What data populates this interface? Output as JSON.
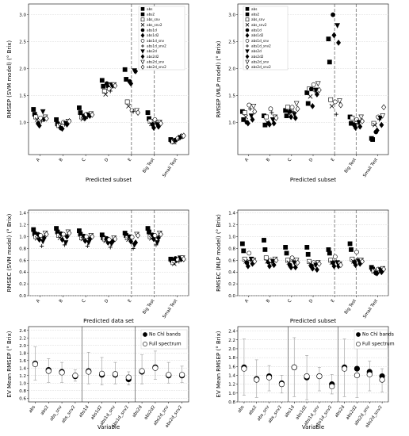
{
  "chart_data": [
    {
      "type": "scatter",
      "panel": "top-left",
      "ylabel": "RMSEP (SVM model) (° Brix)",
      "xlabel": "Predicted subset",
      "categories": [
        "A",
        "B",
        "C",
        "D",
        "E",
        "Big Test",
        "Small Test"
      ],
      "ylim": [
        0.4,
        3.2
      ],
      "yticks": [
        1.0,
        1.5,
        2.0,
        2.5,
        3.0
      ],
      "grid": true,
      "legend_position": "top-right",
      "series": [
        {
          "name": "abs",
          "marker": "square-filled",
          "values": [
            1.24,
            1.05,
            1.27,
            1.78,
            1.98,
            1.18,
            0.68
          ]
        },
        {
          "name": "abs2",
          "marker": "square-filled",
          "values": [
            1.15,
            0.97,
            1.18,
            1.67,
            1.8,
            1.07,
            0.66
          ]
        },
        {
          "name": "abs_snv",
          "marker": "square-open",
          "values": [
            1.1,
            0.94,
            1.1,
            1.58,
            1.38,
            1.02,
            0.64
          ]
        },
        {
          "name": "abs_snv2",
          "marker": "x",
          "values": [
            1.05,
            0.93,
            1.06,
            1.52,
            1.3,
            0.97,
            0.63
          ]
        },
        {
          "name": "abs1d",
          "marker": "circle-filled",
          "values": [
            0.98,
            0.89,
            1.12,
            1.72,
            1.76,
            0.96,
            0.67
          ]
        },
        {
          "name": "abs1d2",
          "marker": "diamond-filled",
          "values": [
            0.94,
            0.88,
            1.08,
            1.66,
            1.72,
            0.9,
            0.68
          ]
        },
        {
          "name": "abs1d_snv",
          "marker": "circle-open",
          "values": [
            1.08,
            1.0,
            1.15,
            1.62,
            1.22,
            1.05,
            0.7
          ]
        },
        {
          "name": "abs1d_snv2",
          "marker": "plus",
          "values": [
            1.02,
            0.96,
            1.1,
            1.58,
            1.2,
            1.0,
            0.69
          ]
        },
        {
          "name": "abs2d",
          "marker": "triangle-down-filled",
          "values": [
            1.2,
            0.98,
            1.14,
            1.7,
            1.96,
            0.95,
            0.72
          ]
        },
        {
          "name": "abs2d2",
          "marker": "diamond-filled",
          "values": [
            1.06,
            0.96,
            1.12,
            1.68,
            1.95,
            0.92,
            0.74
          ]
        },
        {
          "name": "abs2d_snv",
          "marker": "triangle-down-open",
          "values": [
            1.1,
            1.02,
            1.16,
            1.7,
            1.22,
            1.0,
            0.74
          ]
        },
        {
          "name": "abs2d_snv2",
          "marker": "diamond-open",
          "values": [
            1.07,
            1.02,
            1.14,
            1.68,
            1.18,
            0.98,
            0.75
          ]
        }
      ]
    },
    {
      "type": "scatter",
      "panel": "top-right",
      "ylabel": "RMSEP (MLP model) (° Brix)",
      "xlabel": "Predicted subset",
      "categories": [
        "A",
        "B",
        "C",
        "D",
        "E",
        "Big Test",
        "Small Test"
      ],
      "ylim": [
        0.4,
        3.2
      ],
      "yticks": [
        1.0,
        1.5,
        2.0,
        2.5,
        3.0
      ],
      "grid": true,
      "legend_position": "top-left",
      "series": [
        {
          "name": "abs",
          "marker": "square-filled",
          "values": [
            1.2,
            1.12,
            1.22,
            1.55,
            2.55,
            1.1,
            0.7
          ]
        },
        {
          "name": "abs2",
          "marker": "square-filled",
          "values": [
            1.05,
            0.95,
            1.12,
            1.35,
            2.12,
            0.98,
            0.68
          ]
        },
        {
          "name": "abs_snv",
          "marker": "square-open",
          "values": [
            1.18,
            1.1,
            1.28,
            1.62,
            1.42,
            1.08,
            0.98
          ]
        },
        {
          "name": "abs_snv2",
          "marker": "x",
          "values": [
            1.1,
            1.0,
            1.16,
            1.48,
            1.3,
            0.98,
            0.95
          ]
        },
        {
          "name": "abs1d",
          "marker": "circle-filled",
          "values": [
            1.0,
            0.98,
            1.2,
            1.62,
            3.0,
            0.95,
            0.82
          ]
        },
        {
          "name": "abs1d2",
          "marker": "diamond-filled",
          "values": [
            0.98,
            0.96,
            1.1,
            1.3,
            2.62,
            0.9,
            0.85
          ]
        },
        {
          "name": "abs1d_snv",
          "marker": "circle-open",
          "values": [
            1.32,
            1.25,
            1.28,
            1.7,
            1.38,
            1.05,
            1.1
          ]
        },
        {
          "name": "abs1d_snv2",
          "marker": "plus",
          "values": [
            1.25,
            1.18,
            1.2,
            1.58,
            1.15,
            0.98,
            1.05
          ]
        },
        {
          "name": "abs2d",
          "marker": "triangle-down-filled",
          "values": [
            1.12,
            1.05,
            1.15,
            1.6,
            2.8,
            1.0,
            1.08
          ]
        },
        {
          "name": "abs2d2",
          "marker": "diamond-filled",
          "values": [
            1.05,
            0.98,
            1.08,
            1.52,
            2.48,
            0.92,
            0.95
          ]
        },
        {
          "name": "abs2d_snv",
          "marker": "triangle-down-open",
          "values": [
            1.3,
            1.1,
            1.35,
            1.72,
            1.4,
            1.1,
            1.12
          ]
        },
        {
          "name": "abs2d_snv2",
          "marker": "diamond-open",
          "values": [
            1.2,
            1.08,
            1.25,
            1.6,
            1.32,
            1.02,
            1.28
          ]
        }
      ]
    },
    {
      "type": "scatter",
      "panel": "middle-left",
      "ylabel": "RMSEC (SVM model) (° Brix)",
      "xlabel": "Predicted data set",
      "categories": [
        "A",
        "B",
        "C",
        "D",
        "E",
        "Big Test",
        "Small Test"
      ],
      "ylim": [
        0.0,
        1.45
      ],
      "yticks": [
        0.0,
        0.2,
        0.4,
        0.6,
        0.8,
        1.0,
        1.2,
        1.4
      ],
      "grid": true,
      "series": [
        {
          "name": "abs",
          "marker": "square-filled",
          "values": [
            1.12,
            1.14,
            1.1,
            1.03,
            1.06,
            1.14,
            0.62
          ]
        },
        {
          "name": "abs2",
          "marker": "square-filled",
          "values": [
            1.05,
            1.08,
            1.04,
            0.98,
            1.02,
            1.08,
            0.6
          ]
        },
        {
          "name": "abs_snv",
          "marker": "square-open",
          "values": [
            1.0,
            1.02,
            0.98,
            0.96,
            0.98,
            1.0,
            0.56
          ]
        },
        {
          "name": "abs_snv2",
          "marker": "x",
          "values": [
            0.97,
            0.98,
            0.96,
            0.93,
            0.95,
            0.97,
            0.54
          ]
        },
        {
          "name": "abs1d",
          "marker": "circle-filled",
          "values": [
            1.04,
            1.05,
            1.01,
            0.97,
            1.0,
            1.03,
            0.63
          ]
        },
        {
          "name": "abs1d2",
          "marker": "diamond-filled",
          "values": [
            0.95,
            0.95,
            0.93,
            0.9,
            0.92,
            0.96,
            0.6
          ]
        },
        {
          "name": "abs1d_snv",
          "marker": "circle-open",
          "values": [
            1.02,
            1.04,
            1.0,
            0.95,
            0.99,
            1.02,
            0.61
          ]
        },
        {
          "name": "abs1d_snv2",
          "marker": "plus",
          "values": [
            0.84,
            0.86,
            0.84,
            0.82,
            0.8,
            0.86,
            0.58
          ]
        },
        {
          "name": "abs2d",
          "marker": "triangle-down-filled",
          "values": [
            0.92,
            0.9,
            0.9,
            0.88,
            0.86,
            0.9,
            0.64
          ]
        },
        {
          "name": "abs2d2",
          "marker": "diamond-filled",
          "values": [
            0.98,
            1.0,
            0.96,
            0.92,
            0.9,
            0.98,
            0.62
          ]
        },
        {
          "name": "abs2d_snv",
          "marker": "triangle-down-open",
          "values": [
            1.06,
            1.08,
            1.02,
            0.98,
            1.04,
            1.06,
            0.64
          ]
        },
        {
          "name": "abs2d_snv2",
          "marker": "diamond-open",
          "values": [
            1.04,
            1.06,
            1.0,
            0.96,
            1.02,
            1.04,
            0.62
          ]
        }
      ]
    },
    {
      "type": "scatter",
      "panel": "middle-right",
      "ylabel": "RMSEC (MLP model) (° Brix)",
      "xlabel": "Predicted subset",
      "categories": [
        "A",
        "B",
        "C",
        "D",
        "E",
        "Big Test",
        "Small Test"
      ],
      "ylim": [
        0.0,
        1.45
      ],
      "yticks": [
        0.0,
        0.2,
        0.4,
        0.6,
        0.8,
        1.0,
        1.2,
        1.4
      ],
      "grid": true,
      "series": [
        {
          "name": "abs",
          "marker": "square-filled",
          "values": [
            0.88,
            0.94,
            0.82,
            0.82,
            0.78,
            0.88,
            0.48
          ]
        },
        {
          "name": "abs2",
          "marker": "square-filled",
          "values": [
            0.76,
            0.78,
            0.72,
            0.7,
            0.72,
            0.78,
            0.45
          ]
        },
        {
          "name": "abs_snv",
          "marker": "square-open",
          "values": [
            0.62,
            0.64,
            0.6,
            0.58,
            0.6,
            0.62,
            0.42
          ]
        },
        {
          "name": "abs_snv2",
          "marker": "x",
          "values": [
            0.58,
            0.58,
            0.56,
            0.54,
            0.56,
            0.58,
            0.42
          ]
        },
        {
          "name": "abs1d",
          "marker": "circle-filled",
          "values": [
            0.56,
            0.57,
            0.52,
            0.5,
            0.56,
            0.57,
            0.38
          ]
        },
        {
          "name": "abs1d2",
          "marker": "diamond-filled",
          "values": [
            0.5,
            0.5,
            0.48,
            0.46,
            0.5,
            0.52,
            0.38
          ]
        },
        {
          "name": "abs1d_snv",
          "marker": "circle-open",
          "values": [
            0.72,
            0.6,
            0.64,
            0.56,
            0.66,
            0.74,
            0.45
          ]
        },
        {
          "name": "abs1d_snv2",
          "marker": "plus",
          "values": [
            0.6,
            0.56,
            0.58,
            0.52,
            0.58,
            0.62,
            0.42
          ]
        },
        {
          "name": "abs2d",
          "marker": "triangle-down-filled",
          "values": [
            0.62,
            0.58,
            0.56,
            0.52,
            0.56,
            0.58,
            0.44
          ]
        },
        {
          "name": "abs2d2",
          "marker": "diamond-filled",
          "values": [
            0.54,
            0.52,
            0.48,
            0.44,
            0.5,
            0.54,
            0.4
          ]
        },
        {
          "name": "abs2d_snv",
          "marker": "triangle-down-open",
          "values": [
            0.6,
            0.62,
            0.6,
            0.56,
            0.54,
            0.6,
            0.46
          ]
        },
        {
          "name": "abs2d_snv2",
          "marker": "diamond-open",
          "values": [
            0.58,
            0.6,
            0.56,
            0.54,
            0.52,
            0.58,
            0.45
          ]
        }
      ]
    },
    {
      "type": "scatter",
      "panel": "bottom-left",
      "ylabel": "EV Mean RMSEP (° Brix)",
      "xlabel": "Variable",
      "categories": [
        "abs",
        "abs2",
        "abs_snv",
        "abs_snv2",
        "abs1d",
        "abs1d2",
        "abs1d_snv",
        "abs1d_snv2",
        "abs2d",
        "abs2d2",
        "abs2d_snv",
        "abs2d_snv2"
      ],
      "ylim": [
        0.5,
        2.5
      ],
      "yticks": [
        0.6,
        0.8,
        1.0,
        1.2,
        1.4,
        1.6,
        1.8,
        2.0,
        2.2,
        2.4
      ],
      "grid": true,
      "legend_position": "top-right",
      "series": [
        {
          "name": "No Chl bands",
          "marker": "circle-filled",
          "values": [
            1.52,
            1.35,
            1.3,
            1.18,
            1.32,
            1.22,
            1.22,
            1.1,
            1.3,
            1.42,
            1.2,
            1.2
          ],
          "err_low": [
            1.08,
            1.02,
            1.02,
            1.05,
            0.98,
            0.95,
            0.98,
            0.95,
            0.98,
            1.1,
            1.0,
            1.02
          ],
          "err_high": [
            1.96,
            1.65,
            1.55,
            1.35,
            1.82,
            1.68,
            1.55,
            1.3,
            1.75,
            1.85,
            1.55,
            1.45
          ]
        },
        {
          "name": "Full spectrum",
          "marker": "circle-open",
          "values": [
            1.5,
            1.32,
            1.28,
            1.2,
            1.3,
            1.25,
            1.24,
            1.15,
            1.32,
            1.4,
            1.22,
            1.22
          ]
        }
      ]
    },
    {
      "type": "scatter",
      "panel": "bottom-right",
      "ylabel": "EV Mean RMSEP (° Brix)",
      "xlabel": "Variable",
      "categories": [
        "abs",
        "abs2",
        "abs_snv",
        "abs_snv2",
        "abs1d",
        "abs1d2",
        "abs1d_snv",
        "abs1d_snv2",
        "abs2d",
        "abs2d2",
        "abs2d_snv",
        "abs2d_snv2"
      ],
      "ylim": [
        0.8,
        2.5
      ],
      "yticks": [
        0.8,
        1.0,
        1.2,
        1.4,
        1.6,
        1.8,
        2.0,
        2.2,
        2.4
      ],
      "grid": true,
      "legend_position": "top-right",
      "series": [
        {
          "name": "No Chl bands",
          "marker": "circle-filled",
          "values": [
            1.58,
            1.32,
            1.38,
            1.22,
            1.58,
            1.35,
            1.38,
            1.2,
            1.58,
            1.55,
            1.48,
            1.38
          ],
          "err_low": [
            0.95,
            0.9,
            1.05,
            1.0,
            0.92,
            0.85,
            1.05,
            0.98,
            0.92,
            0.9,
            1.05,
            1.02
          ],
          "err_high": [
            2.22,
            1.75,
            1.62,
            1.4,
            2.25,
            1.85,
            1.58,
            1.42,
            2.22,
            2.22,
            1.72,
            1.55
          ]
        },
        {
          "name": "Full spectrum",
          "marker": "circle-open",
          "values": [
            1.55,
            1.3,
            1.35,
            1.2,
            1.58,
            1.38,
            1.38,
            1.15,
            1.55,
            1.4,
            1.42,
            1.3
          ]
        }
      ]
    }
  ]
}
